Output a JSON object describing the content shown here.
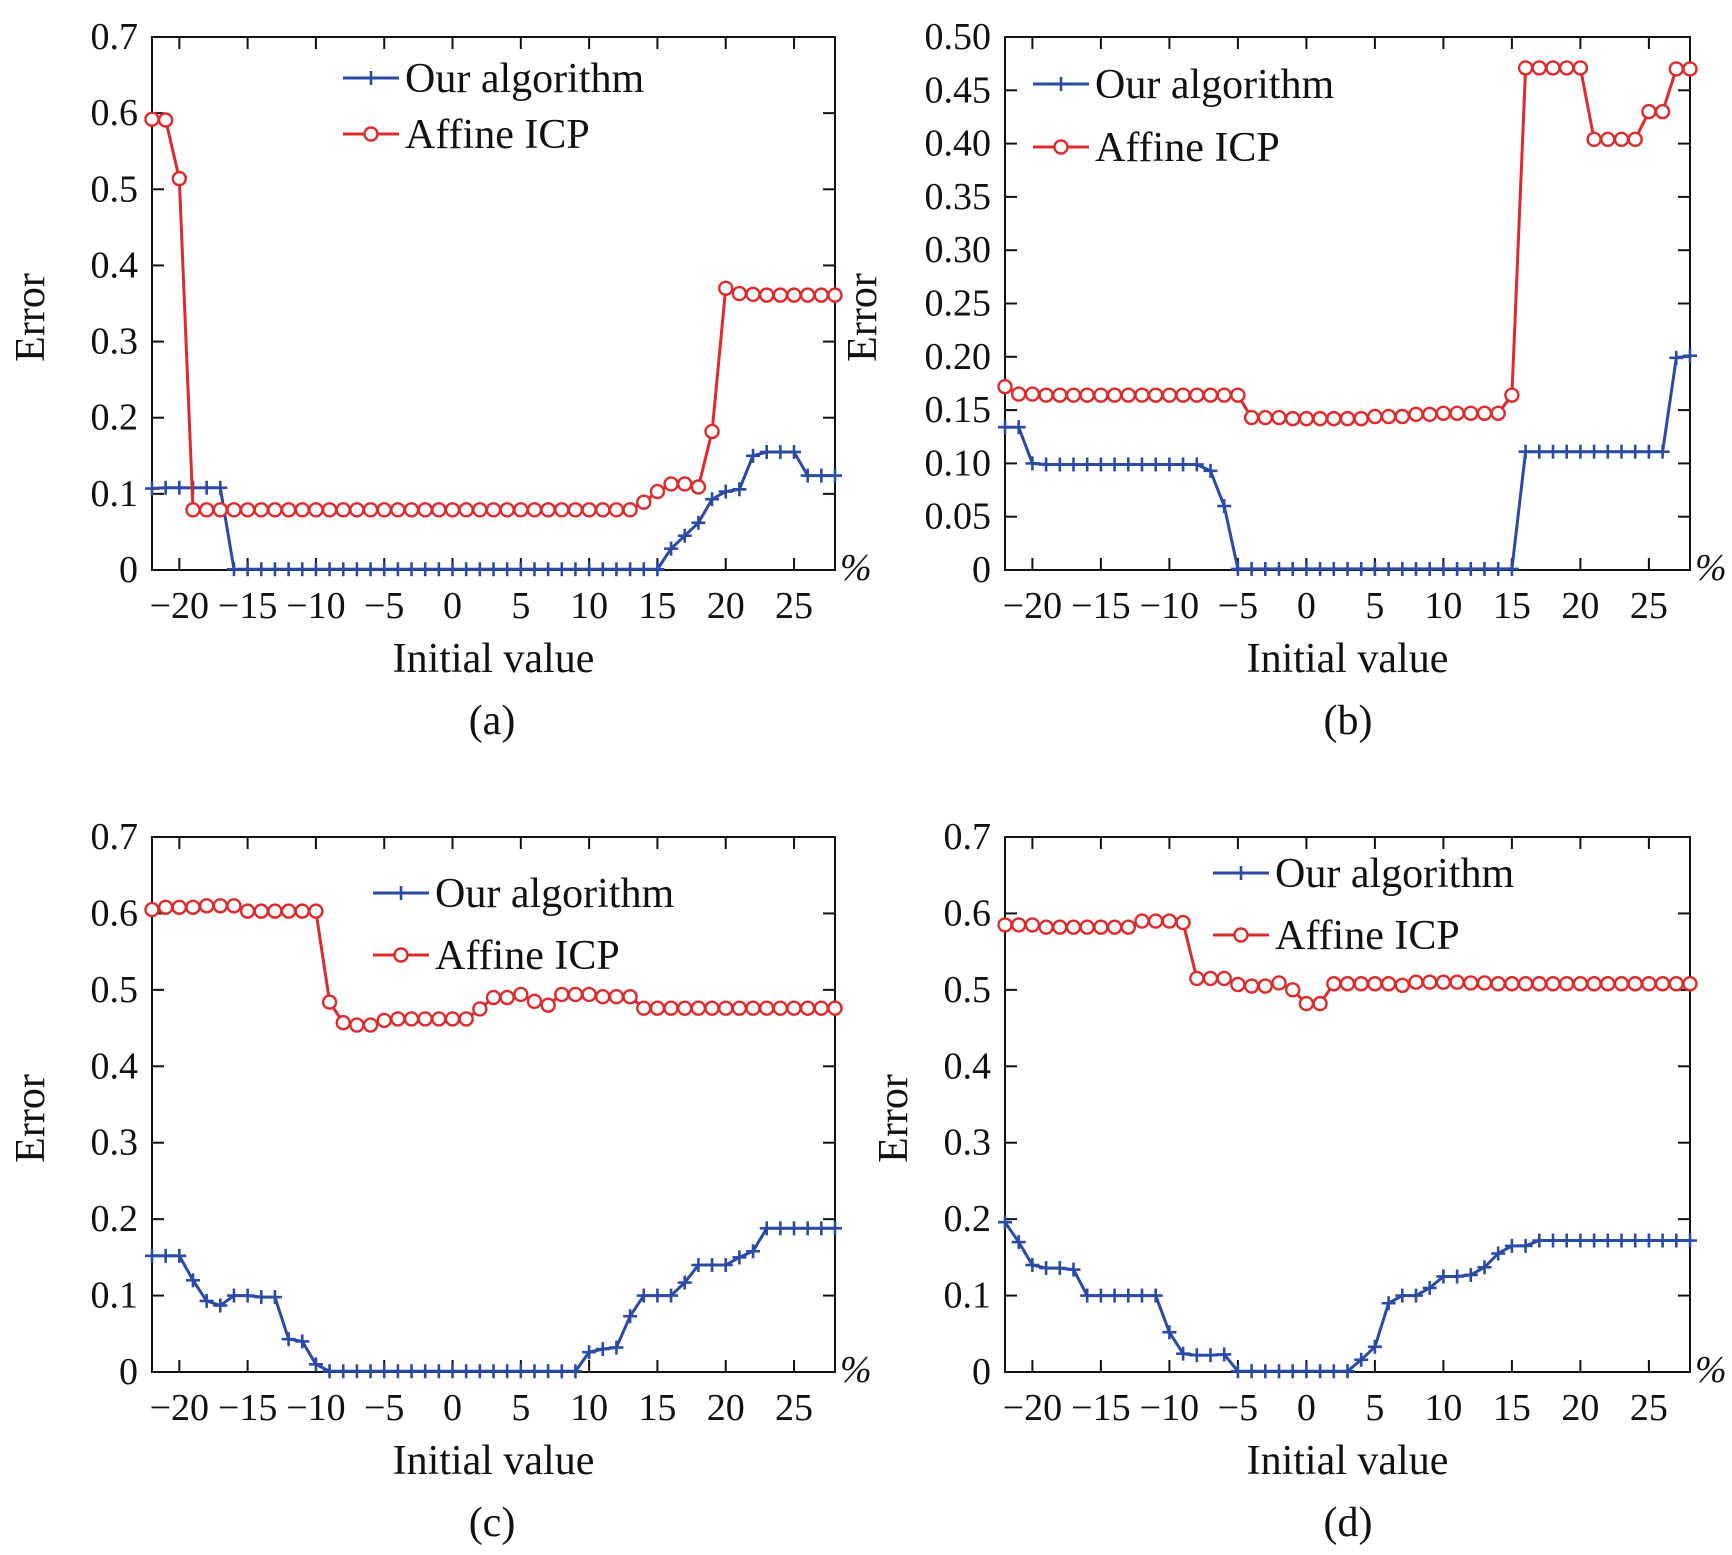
{
  "colors": {
    "our": "#2b4aa6",
    "icp": "#dd2b2b",
    "axis": "#111111"
  },
  "chart_data": [
    {
      "type": "line",
      "caption": "(a)",
      "xlabel": "Initial value",
      "ylabel": "Error",
      "unit": "%",
      "xlim": [
        -22,
        28
      ],
      "ylim": [
        0,
        0.7
      ],
      "xticks": [
        -20,
        -15,
        -10,
        -5,
        0,
        5,
        10,
        15,
        20,
        25
      ],
      "xtick_labels": [
        "−20",
        "−15",
        "−10",
        "−5",
        "0",
        "5",
        "10",
        "15",
        "20",
        "25"
      ],
      "yticks": [
        0,
        0.1,
        0.2,
        0.3,
        0.4,
        0.5,
        0.6,
        0.7
      ],
      "ytick_labels": [
        "0",
        "0.1",
        "0.2",
        "0.3",
        "0.4",
        "0.5",
        "0.6",
        "0.7"
      ],
      "legend_position": "top-right",
      "x": [
        -22,
        -21,
        -20,
        -19,
        -18,
        -17,
        -16,
        -15,
        -14,
        -13,
        -12,
        -11,
        -10,
        -9,
        -8,
        -7,
        -6,
        -5,
        -4,
        -3,
        -2,
        -1,
        0,
        1,
        2,
        3,
        4,
        5,
        6,
        7,
        8,
        9,
        10,
        11,
        12,
        13,
        14,
        15,
        16,
        17,
        18,
        19,
        20,
        21,
        22,
        23,
        24,
        25,
        26,
        27,
        28
      ],
      "series": [
        {
          "name": "Our algorithm",
          "marker": "plus",
          "color_key": "our",
          "values": [
            0.107,
            0.108,
            0.108,
            0.108,
            0.108,
            0.108,
            0.001,
            0.001,
            0.001,
            0.001,
            0.001,
            0.001,
            0.001,
            0.001,
            0.001,
            0.001,
            0.001,
            0.001,
            0.001,
            0.001,
            0.001,
            0.001,
            0.001,
            0.001,
            0.001,
            0.001,
            0.001,
            0.001,
            0.001,
            0.001,
            0.001,
            0.001,
            0.001,
            0.001,
            0.001,
            0.001,
            0.001,
            0.001,
            0.028,
            0.045,
            0.062,
            0.093,
            0.103,
            0.106,
            0.15,
            0.155,
            0.155,
            0.155,
            0.124,
            0.124,
            0.124
          ]
        },
        {
          "name": "Affine ICP",
          "marker": "circle",
          "color_key": "icp",
          "values": [
            0.592,
            0.591,
            0.514,
            0.079,
            0.079,
            0.079,
            0.079,
            0.079,
            0.079,
            0.079,
            0.079,
            0.079,
            0.079,
            0.079,
            0.079,
            0.079,
            0.079,
            0.079,
            0.079,
            0.079,
            0.079,
            0.079,
            0.079,
            0.079,
            0.079,
            0.079,
            0.079,
            0.079,
            0.079,
            0.079,
            0.079,
            0.079,
            0.079,
            0.079,
            0.079,
            0.079,
            0.089,
            0.103,
            0.113,
            0.113,
            0.109,
            0.182,
            0.37,
            0.363,
            0.362,
            0.361,
            0.361,
            0.361,
            0.361,
            0.361,
            0.361
          ]
        }
      ]
    },
    {
      "type": "line",
      "caption": "(b)",
      "xlabel": "Initial value",
      "ylabel": "Error",
      "unit": "%",
      "xlim": [
        -22,
        28
      ],
      "ylim": [
        0,
        0.5
      ],
      "xticks": [
        -20,
        -15,
        -10,
        -5,
        0,
        5,
        10,
        15,
        20,
        25
      ],
      "xtick_labels": [
        "−20",
        "−15",
        "−10",
        "−5",
        "0",
        "5",
        "10",
        "15",
        "20",
        "25"
      ],
      "yticks": [
        0,
        0.05,
        0.1,
        0.15,
        0.2,
        0.25,
        0.3,
        0.35,
        0.4,
        0.45,
        0.5
      ],
      "ytick_labels": [
        "0",
        "0.05",
        "0.10",
        "0.15",
        "0.20",
        "0.25",
        "0.30",
        "0.35",
        "0.40",
        "0.45",
        "0.50"
      ],
      "legend_position": "top-left",
      "x": [
        -22,
        -21,
        -20,
        -19,
        -18,
        -17,
        -16,
        -15,
        -14,
        -13,
        -12,
        -11,
        -10,
        -9,
        -8,
        -7,
        -6,
        -5,
        -4,
        -3,
        -2,
        -1,
        0,
        1,
        2,
        3,
        4,
        5,
        6,
        7,
        8,
        9,
        10,
        11,
        12,
        13,
        14,
        15,
        16,
        17,
        18,
        19,
        20,
        21,
        22,
        23,
        24,
        25,
        26,
        27,
        28
      ],
      "series": [
        {
          "name": "Our algorithm",
          "marker": "plus",
          "color_key": "our",
          "values": [
            0.134,
            0.134,
            0.1,
            0.099,
            0.099,
            0.099,
            0.099,
            0.099,
            0.099,
            0.099,
            0.099,
            0.099,
            0.099,
            0.099,
            0.099,
            0.093,
            0.06,
            0.001,
            0.001,
            0.001,
            0.001,
            0.001,
            0.001,
            0.001,
            0.001,
            0.001,
            0.001,
            0.001,
            0.001,
            0.001,
            0.001,
            0.001,
            0.001,
            0.001,
            0.001,
            0.001,
            0.001,
            0.001,
            0.111,
            0.111,
            0.111,
            0.111,
            0.111,
            0.111,
            0.111,
            0.111,
            0.111,
            0.111,
            0.111,
            0.199,
            0.201
          ]
        },
        {
          "name": "Affine ICP",
          "marker": "circle",
          "color_key": "icp",
          "values": [
            0.172,
            0.165,
            0.165,
            0.164,
            0.164,
            0.164,
            0.164,
            0.164,
            0.164,
            0.164,
            0.164,
            0.164,
            0.164,
            0.164,
            0.164,
            0.164,
            0.164,
            0.164,
            0.143,
            0.143,
            0.143,
            0.142,
            0.142,
            0.142,
            0.142,
            0.142,
            0.142,
            0.144,
            0.144,
            0.144,
            0.146,
            0.146,
            0.147,
            0.147,
            0.147,
            0.147,
            0.147,
            0.164,
            0.471,
            0.471,
            0.471,
            0.471,
            0.471,
            0.404,
            0.404,
            0.404,
            0.404,
            0.43,
            0.43,
            0.47,
            0.47
          ]
        }
      ]
    },
    {
      "type": "line",
      "caption": "(c)",
      "xlabel": "Initial value",
      "ylabel": "Error",
      "unit": "%",
      "xlim": [
        -22,
        28
      ],
      "ylim": [
        0,
        0.7
      ],
      "xticks": [
        -20,
        -15,
        -10,
        -5,
        0,
        5,
        10,
        15,
        20,
        25
      ],
      "xtick_labels": [
        "−20",
        "−15",
        "−10",
        "−5",
        "0",
        "5",
        "10",
        "15",
        "20",
        "25"
      ],
      "yticks": [
        0,
        0.1,
        0.2,
        0.3,
        0.4,
        0.5,
        0.6,
        0.7
      ],
      "ytick_labels": [
        "0",
        "0.1",
        "0.2",
        "0.3",
        "0.4",
        "0.5",
        "0.6",
        "0.7"
      ],
      "legend_position": "top-right",
      "x": [
        -22,
        -21,
        -20,
        -19,
        -18,
        -17,
        -16,
        -15,
        -14,
        -13,
        -12,
        -11,
        -10,
        -9,
        -8,
        -7,
        -6,
        -5,
        -4,
        -3,
        -2,
        -1,
        0,
        1,
        2,
        3,
        4,
        5,
        6,
        7,
        8,
        9,
        10,
        11,
        12,
        13,
        14,
        15,
        16,
        17,
        18,
        19,
        20,
        21,
        22,
        23,
        24,
        25,
        26,
        27,
        28
      ],
      "series": [
        {
          "name": "Our algorithm",
          "marker": "plus",
          "color_key": "our",
          "values": [
            0.152,
            0.152,
            0.152,
            0.12,
            0.093,
            0.087,
            0.1,
            0.1,
            0.098,
            0.098,
            0.043,
            0.04,
            0.01,
            0.001,
            0.001,
            0.001,
            0.001,
            0.001,
            0.001,
            0.001,
            0.001,
            0.001,
            0.001,
            0.001,
            0.001,
            0.001,
            0.001,
            0.001,
            0.001,
            0.001,
            0.001,
            0.001,
            0.026,
            0.03,
            0.032,
            0.073,
            0.1,
            0.1,
            0.1,
            0.117,
            0.14,
            0.14,
            0.14,
            0.15,
            0.158,
            0.188,
            0.188,
            0.188,
            0.188,
            0.188,
            0.188
          ]
        },
        {
          "name": "Affine ICP",
          "marker": "circle",
          "color_key": "icp",
          "values": [
            0.605,
            0.608,
            0.608,
            0.608,
            0.61,
            0.61,
            0.61,
            0.603,
            0.603,
            0.603,
            0.603,
            0.603,
            0.603,
            0.484,
            0.457,
            0.454,
            0.454,
            0.46,
            0.462,
            0.462,
            0.462,
            0.462,
            0.462,
            0.462,
            0.475,
            0.49,
            0.49,
            0.494,
            0.485,
            0.48,
            0.494,
            0.494,
            0.494,
            0.491,
            0.491,
            0.491,
            0.476,
            0.476,
            0.476,
            0.476,
            0.476,
            0.476,
            0.476,
            0.476,
            0.476,
            0.476,
            0.476,
            0.476,
            0.476,
            0.476,
            0.476
          ]
        }
      ]
    },
    {
      "type": "line",
      "caption": "(d)",
      "xlabel": "Initial value",
      "ylabel": "Error",
      "unit": "%",
      "xlim": [
        -22,
        28
      ],
      "ylim": [
        0,
        0.7
      ],
      "xticks": [
        -20,
        -15,
        -10,
        -5,
        0,
        5,
        10,
        15,
        20,
        25
      ],
      "xtick_labels": [
        "−20",
        "−15",
        "−10",
        "−5",
        "0",
        "5",
        "10",
        "15",
        "20",
        "25"
      ],
      "yticks": [
        0,
        0.1,
        0.2,
        0.3,
        0.4,
        0.5,
        0.6,
        0.7
      ],
      "ytick_labels": [
        "0",
        "0.1",
        "0.2",
        "0.3",
        "0.4",
        "0.5",
        "0.6",
        "0.7"
      ],
      "legend_position": "top-right",
      "x": [
        -22,
        -21,
        -20,
        -19,
        -18,
        -17,
        -16,
        -15,
        -14,
        -13,
        -12,
        -11,
        -10,
        -9,
        -8,
        -7,
        -6,
        -5,
        -4,
        -3,
        -2,
        -1,
        0,
        1,
        2,
        3,
        4,
        5,
        6,
        7,
        8,
        9,
        10,
        11,
        12,
        13,
        14,
        15,
        16,
        17,
        18,
        19,
        20,
        21,
        22,
        23,
        24,
        25,
        26,
        27,
        28
      ],
      "series": [
        {
          "name": "Our algorithm",
          "marker": "plus",
          "color_key": "our",
          "values": [
            0.196,
            0.17,
            0.14,
            0.136,
            0.136,
            0.134,
            0.1,
            0.1,
            0.1,
            0.1,
            0.1,
            0.1,
            0.052,
            0.024,
            0.022,
            0.022,
            0.023,
            0.001,
            0.001,
            0.001,
            0.001,
            0.001,
            0.001,
            0.001,
            0.001,
            0.001,
            0.016,
            0.033,
            0.09,
            0.1,
            0.1,
            0.11,
            0.125,
            0.125,
            0.127,
            0.137,
            0.155,
            0.165,
            0.165,
            0.172,
            0.172,
            0.172,
            0.172,
            0.172,
            0.172,
            0.172,
            0.172,
            0.172,
            0.172,
            0.172,
            0.172
          ]
        },
        {
          "name": "Affine ICP",
          "marker": "circle",
          "color_key": "icp",
          "values": [
            0.585,
            0.585,
            0.585,
            0.582,
            0.582,
            0.582,
            0.582,
            0.582,
            0.582,
            0.582,
            0.59,
            0.59,
            0.59,
            0.588,
            0.515,
            0.515,
            0.515,
            0.507,
            0.505,
            0.505,
            0.509,
            0.5,
            0.482,
            0.482,
            0.508,
            0.508,
            0.508,
            0.508,
            0.508,
            0.506,
            0.51,
            0.51,
            0.51,
            0.51,
            0.509,
            0.509,
            0.508,
            0.508,
            0.508,
            0.508,
            0.508,
            0.508,
            0.508,
            0.508,
            0.508,
            0.508,
            0.508,
            0.508,
            0.508,
            0.508,
            0.508
          ]
        }
      ]
    }
  ]
}
